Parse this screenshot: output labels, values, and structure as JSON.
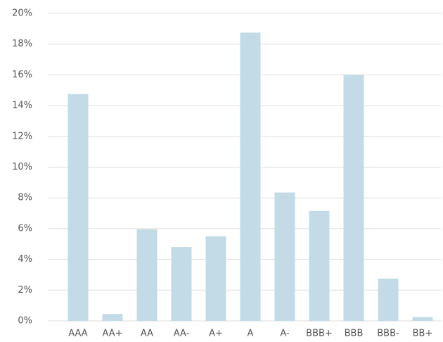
{
  "chart_data": {
    "type": "bar",
    "categories": [
      "AAA",
      "AA+",
      "AA",
      "AA-",
      "A+",
      "A",
      "A-",
      "BBB+",
      "BBB",
      "BBB-",
      "BB+"
    ],
    "values": [
      14.75,
      0.45,
      5.95,
      4.8,
      5.5,
      18.75,
      8.35,
      7.15,
      16.0,
      2.75,
      0.25
    ],
    "color": "#c2dbe7",
    "ylim": [
      0,
      20
    ],
    "yticks": [
      {
        "value": 0,
        "label": "0%"
      },
      {
        "value": 2,
        "label": "2%"
      },
      {
        "value": 4,
        "label": "4%"
      },
      {
        "value": 6,
        "label": "6%"
      },
      {
        "value": 8,
        "label": "8%"
      },
      {
        "value": 10,
        "label": "10%"
      },
      {
        "value": 12,
        "label": "12%"
      },
      {
        "value": 14,
        "label": "14%"
      },
      {
        "value": 16,
        "label": "16%"
      },
      {
        "value": 18,
        "label": "18%"
      },
      {
        "value": 20,
        "label": "20%"
      }
    ],
    "grid": true
  }
}
